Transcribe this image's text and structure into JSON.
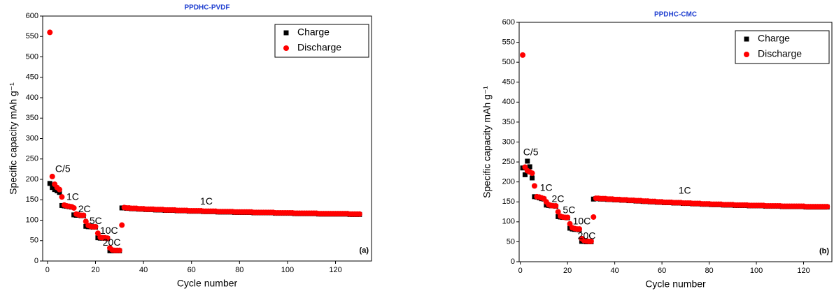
{
  "chart_data": [
    {
      "type": "scatter",
      "title": "PPDHC-PVDF",
      "x_label": "Cycle number",
      "y_label": "Specific capacity mAh g⁻¹",
      "xlim": [
        -2,
        135
      ],
      "xticks": [
        0,
        20,
        40,
        60,
        80,
        100,
        120
      ],
      "ylim": [
        0,
        600
      ],
      "yticks": [
        0,
        50,
        100,
        150,
        200,
        250,
        300,
        350,
        400,
        450,
        500,
        550,
        600
      ],
      "legend": "upper right",
      "annotations": [
        "C/5",
        "1C",
        "2C",
        "5C",
        "10C",
        "20C",
        "1C",
        "(a)"
      ],
      "x": [
        1,
        2,
        3,
        4,
        5,
        6,
        7,
        8,
        9,
        10,
        11,
        12,
        13,
        14,
        15,
        16,
        17,
        18,
        19,
        20,
        21,
        22,
        23,
        24,
        25,
        26,
        27,
        28,
        29,
        30,
        31,
        32,
        33,
        34,
        35,
        36,
        37,
        38,
        39,
        40,
        41,
        42,
        43,
        44,
        45,
        46,
        47,
        48,
        49,
        50,
        51,
        52,
        53,
        54,
        55,
        56,
        57,
        58,
        59,
        60,
        61,
        62,
        63,
        64,
        65,
        66,
        67,
        68,
        69,
        70,
        71,
        72,
        73,
        74,
        75,
        76,
        77,
        78,
        79,
        80,
        81,
        82,
        83,
        84,
        85,
        86,
        87,
        88,
        89,
        90,
        91,
        92,
        93,
        94,
        95,
        96,
        97,
        98,
        99,
        100,
        101,
        102,
        103,
        104,
        105,
        106,
        107,
        108,
        109,
        110,
        111,
        112,
        113,
        114,
        115,
        116,
        117,
        118,
        119,
        120,
        121,
        122,
        123,
        124,
        125,
        126,
        127,
        128,
        129,
        130
      ],
      "series": [
        {
          "name": "Charge",
          "color": "#000000",
          "marker": "square",
          "values": [
            190,
            180,
            175,
            172,
            168,
            136,
            135,
            134,
            133,
            132,
            113,
            112,
            112,
            111,
            111,
            85,
            84,
            84,
            83,
            83,
            57,
            56,
            56,
            56,
            55,
            25,
            25,
            25,
            25,
            25,
            130,
            130,
            129,
            129,
            128,
            128,
            128,
            127,
            127,
            127,
            126,
            126,
            126,
            126,
            125,
            125,
            125,
            125,
            124,
            124,
            124,
            124,
            124,
            123,
            123,
            123,
            123,
            123,
            122,
            122,
            122,
            122,
            122,
            122,
            121,
            121,
            121,
            121,
            121,
            121,
            120,
            120,
            120,
            120,
            120,
            120,
            120,
            119,
            119,
            119,
            119,
            119,
            119,
            119,
            119,
            118,
            118,
            118,
            118,
            118,
            118,
            118,
            118,
            118,
            117,
            117,
            117,
            117,
            117,
            117,
            117,
            117,
            116,
            116,
            116,
            116,
            116,
            116,
            116,
            116,
            116,
            116,
            115,
            115,
            115,
            115,
            115,
            115,
            115,
            115,
            115,
            115,
            115,
            115,
            115,
            114,
            114,
            114,
            114,
            114
          ]
        },
        {
          "name": "Discharge",
          "color": "#ff0000",
          "marker": "circle",
          "values": [
            560,
            207,
            188,
            180,
            175,
            157,
            137,
            135,
            134,
            133,
            130,
            115,
            113,
            112,
            112,
            97,
            87,
            85,
            84,
            84,
            68,
            58,
            57,
            57,
            56,
            32,
            27,
            26,
            26,
            26,
            88,
            131,
            130,
            130,
            129,
            129,
            129,
            128,
            128,
            128,
            127,
            127,
            127,
            127,
            126,
            126,
            126,
            126,
            125,
            125,
            125,
            125,
            125,
            124,
            124,
            124,
            124,
            124,
            123,
            123,
            123,
            123,
            123,
            123,
            122,
            122,
            122,
            122,
            122,
            122,
            121,
            121,
            121,
            121,
            121,
            121,
            121,
            120,
            120,
            120,
            120,
            120,
            120,
            120,
            120,
            119,
            119,
            119,
            119,
            119,
            119,
            119,
            119,
            119,
            118,
            118,
            118,
            118,
            118,
            118,
            118,
            118,
            117,
            117,
            117,
            117,
            117,
            117,
            117,
            117,
            117,
            117,
            116,
            116,
            116,
            116,
            116,
            116,
            116,
            116,
            116,
            116,
            116,
            116,
            116,
            115,
            115,
            115,
            115,
            115
          ]
        }
      ]
    },
    {
      "type": "scatter",
      "title": "PPDHC-CMC",
      "x_label": "Cycle number",
      "y_label": "Specific capacity mAh g⁻¹",
      "xlim": [
        -0.5,
        132
      ],
      "xticks": [
        0,
        20,
        40,
        60,
        80,
        100,
        120
      ],
      "ylim": [
        0,
        600
      ],
      "yticks": [
        0,
        50,
        100,
        150,
        200,
        250,
        300,
        350,
        400,
        450,
        500,
        550,
        600
      ],
      "legend": "upper right",
      "annotations": [
        "C/5",
        "1C",
        "2C",
        "5C",
        "10C",
        "20C",
        "1C",
        "(b)"
      ],
      "x": [
        1,
        2,
        3,
        4,
        5,
        6,
        7,
        8,
        9,
        10,
        11,
        12,
        13,
        14,
        15,
        16,
        17,
        18,
        19,
        20,
        21,
        22,
        23,
        24,
        25,
        26,
        27,
        28,
        29,
        30,
        31,
        32,
        33,
        34,
        35,
        36,
        37,
        38,
        39,
        40,
        41,
        42,
        43,
        44,
        45,
        46,
        47,
        48,
        49,
        50,
        51,
        52,
        53,
        54,
        55,
        56,
        57,
        58,
        59,
        60,
        61,
        62,
        63,
        64,
        65,
        66,
        67,
        68,
        69,
        70,
        71,
        72,
        73,
        74,
        75,
        76,
        77,
        78,
        79,
        80,
        81,
        82,
        83,
        84,
        85,
        86,
        87,
        88,
        89,
        90,
        91,
        92,
        93,
        94,
        95,
        96,
        97,
        98,
        99,
        100,
        101,
        102,
        103,
        104,
        105,
        106,
        107,
        108,
        109,
        110,
        111,
        112,
        113,
        114,
        115,
        116,
        117,
        118,
        119,
        120,
        121,
        122,
        123,
        124,
        125,
        126,
        127,
        128,
        129,
        130
      ],
      "series": [
        {
          "name": "Charge",
          "color": "#000000",
          "marker": "square",
          "values": [
            235,
            218,
            252,
            238,
            210,
            163,
            162,
            160,
            158,
            157,
            142,
            141,
            140,
            140,
            139,
            113,
            112,
            111,
            111,
            110,
            84,
            82,
            81,
            81,
            80,
            51,
            51,
            50,
            50,
            50,
            157,
            158,
            158,
            157,
            157,
            157,
            156,
            156,
            156,
            155,
            155,
            155,
            154,
            154,
            154,
            153,
            153,
            153,
            152,
            152,
            152,
            151,
            151,
            151,
            150,
            150,
            150,
            149,
            149,
            149,
            148,
            148,
            148,
            148,
            147,
            147,
            147,
            147,
            146,
            146,
            146,
            146,
            145,
            145,
            145,
            145,
            144,
            144,
            144,
            144,
            143,
            143,
            143,
            143,
            143,
            142,
            142,
            142,
            142,
            142,
            141,
            141,
            141,
            141,
            141,
            141,
            140,
            140,
            140,
            140,
            140,
            140,
            140,
            139,
            139,
            139,
            139,
            139,
            139,
            139,
            138,
            138,
            138,
            138,
            138,
            138,
            138,
            138,
            138,
            138,
            137,
            137,
            137,
            137,
            137,
            137,
            137,
            137,
            137,
            137
          ]
        },
        {
          "name": "Discharge",
          "color": "#ff0000",
          "marker": "circle",
          "values": [
            518,
            237,
            228,
            225,
            222,
            190,
            163,
            162,
            160,
            158,
            150,
            143,
            141,
            140,
            140,
            125,
            114,
            112,
            111,
            111,
            95,
            85,
            83,
            82,
            82,
            58,
            53,
            52,
            51,
            51,
            112,
            159,
            159,
            158,
            158,
            158,
            157,
            157,
            157,
            156,
            156,
            156,
            155,
            155,
            155,
            154,
            154,
            154,
            153,
            153,
            153,
            152,
            152,
            152,
            151,
            151,
            151,
            150,
            150,
            150,
            149,
            149,
            149,
            149,
            148,
            148,
            148,
            148,
            147,
            147,
            147,
            147,
            146,
            146,
            146,
            146,
            145,
            145,
            145,
            145,
            144,
            144,
            144,
            144,
            144,
            143,
            143,
            143,
            143,
            143,
            142,
            142,
            142,
            142,
            142,
            142,
            141,
            141,
            141,
            141,
            141,
            141,
            141,
            140,
            140,
            140,
            140,
            140,
            140,
            140,
            139,
            139,
            139,
            139,
            139,
            139,
            139,
            139,
            139,
            139,
            138,
            138,
            138,
            138,
            138,
            138,
            138,
            138,
            138,
            138
          ]
        }
      ]
    }
  ]
}
